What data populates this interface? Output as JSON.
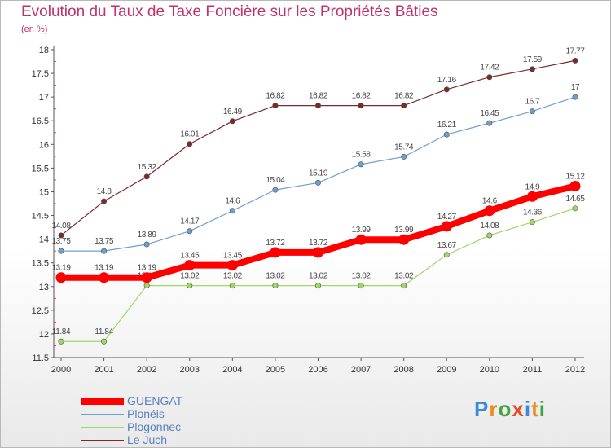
{
  "title": "Evolution du Taux de Taxe Foncière sur les Propriétés Bâties",
  "subtitle": "(en %)",
  "logo": {
    "letters": [
      "P",
      "r",
      "o",
      "x",
      "i",
      "t",
      "i"
    ],
    "colors": [
      "#3a8ad6",
      "#f08a1c",
      "#3fa63f",
      "#e84a23",
      "#3a8ad6",
      "#f08a1c",
      "#3fa63f"
    ]
  },
  "chart_data": {
    "type": "line",
    "x": [
      "2000",
      "2001",
      "2002",
      "2003",
      "2004",
      "2005",
      "2006",
      "2007",
      "2008",
      "2009",
      "2010",
      "2011",
      "2012"
    ],
    "ylim": [
      11.5,
      18
    ],
    "yticks": [
      "11.5",
      "12",
      "12.5",
      "13",
      "13.5",
      "14",
      "14.5",
      "15",
      "15.5",
      "16",
      "16.5",
      "17",
      "17.5",
      "18"
    ],
    "grid": false,
    "legend_position": "bottom-left",
    "series": [
      {
        "name": "Le Juch",
        "color": "#7a2a2a",
        "values": [
          14.08,
          14.8,
          15.32,
          16.01,
          16.49,
          16.82,
          16.82,
          16.82,
          16.82,
          17.16,
          17.42,
          17.59,
          17.77
        ],
        "labels": [
          "14.08",
          "14.8",
          "15.32",
          "16.01",
          "16.49",
          "16.82",
          "16.82",
          "16.82",
          "16.82",
          "17.16",
          "17.42",
          "17.59",
          "17.77"
        ]
      },
      {
        "name": "Plonéis",
        "color": "#6f9fd0",
        "values": [
          13.75,
          13.75,
          13.89,
          14.17,
          14.6,
          15.04,
          15.19,
          15.58,
          15.74,
          16.21,
          16.45,
          16.7,
          17
        ],
        "labels": [
          "13.75",
          "13.75",
          "13.89",
          "14.17",
          "14.6",
          "15.04",
          "15.19",
          "15.58",
          "15.74",
          "16.21",
          "16.45",
          "16.7",
          "17"
        ]
      },
      {
        "name": "Plogonnec",
        "color": "#9ed865",
        "values": [
          11.84,
          11.84,
          13.02,
          13.02,
          13.02,
          13.02,
          13.02,
          13.02,
          13.02,
          13.67,
          14.08,
          14.36,
          14.65
        ],
        "labels": [
          "11.84",
          "11.84",
          "13.02",
          "13.02",
          "13.02",
          "13.02",
          "13.02",
          "13.02",
          "13.02",
          "13.67",
          "14.08",
          "14.36",
          "14.65"
        ]
      },
      {
        "name": "GUENGAT",
        "color": "#ff0000",
        "values": [
          13.19,
          13.19,
          13.19,
          13.45,
          13.45,
          13.72,
          13.72,
          13.99,
          13.99,
          14.27,
          14.6,
          14.9,
          15.12
        ],
        "labels": [
          "13.19",
          "13.19",
          "13.19",
          "13.45",
          "13.45",
          "13.72",
          "13.72",
          "13.99",
          "13.99",
          "14.27",
          "14.6",
          "14.9",
          "15.12"
        ]
      }
    ],
    "legend_order": [
      "GUENGAT",
      "Plonéis",
      "Plogonnec",
      "Le Juch"
    ]
  }
}
